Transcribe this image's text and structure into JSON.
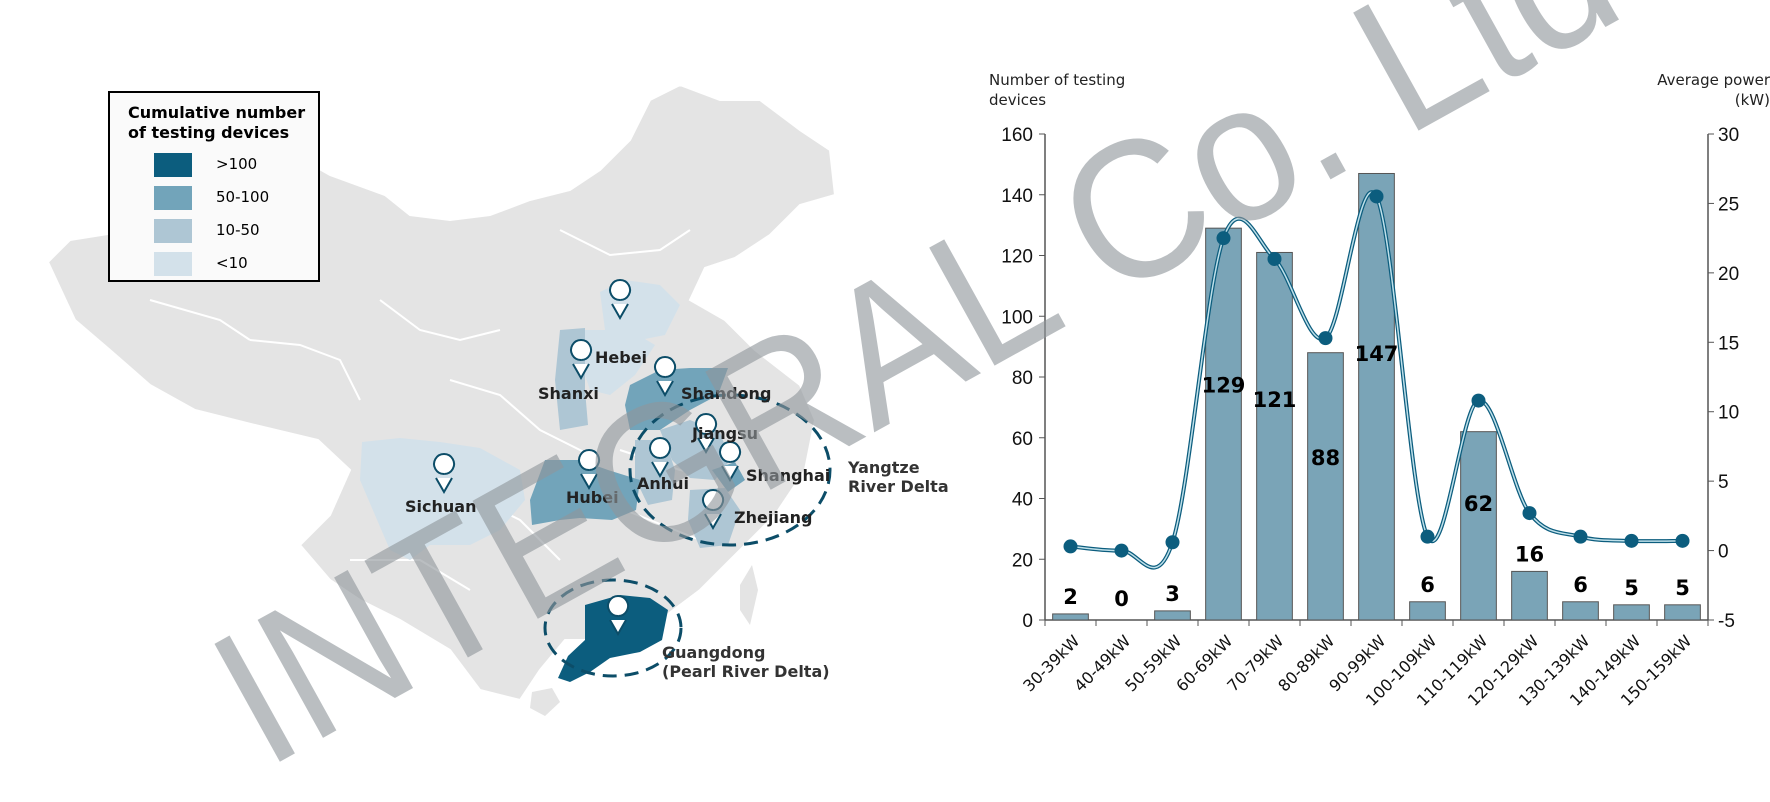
{
  "map": {
    "legend": {
      "title": "Cumulative number of testing devices",
      "items": [
        {
          "label": ">100",
          "color": "#0c5d7e"
        },
        {
          "label": "50-100",
          "color": "#72a4ba"
        },
        {
          "label": "10-50",
          "color": "#aec6d4"
        },
        {
          "label": "<10",
          "color": "#d3e1ea"
        }
      ]
    },
    "provinces": {
      "hebei": "Hebei",
      "shanxi": "Shanxi",
      "shandong": "Shandong",
      "jiangsu": "Jiangsu",
      "anhui": "Anhui",
      "shanghai": "Shanghai",
      "sichuan": "Sichuan",
      "hubei": "Hubei",
      "zhejiang": "Zhejiang",
      "guangdong": "Guangdong"
    },
    "regions": {
      "yangtze_line1": "Yangtze",
      "yangtze_line2": "River Delta",
      "pearl_line1": "Guangdong",
      "pearl_line2": "(Pearl River Delta)"
    },
    "colors": {
      "base": "#e4e4e4",
      "border": "#ffffff"
    }
  },
  "watermark": "INTEGRAL Co. Ltd",
  "chart_data": {
    "type": "bar",
    "categories": [
      "30-39kW",
      "40-49kW",
      "50-59kW",
      "60-69kW",
      "70-79kW",
      "80-89kW",
      "90-99kW",
      "100-109kW",
      "110-119kW",
      "120-129kW",
      "130-139kW",
      "140-149kW",
      "150-159kW"
    ],
    "series": [
      {
        "type": "bar",
        "axis": "left",
        "values": [
          2,
          0,
          3,
          129,
          121,
          88,
          147,
          6,
          62,
          16,
          6,
          5,
          5
        ],
        "color": "#7aa4b7"
      },
      {
        "type": "line",
        "axis": "right",
        "values": [
          0.3,
          0,
          0.6,
          22.5,
          21,
          15.3,
          25.5,
          1.0,
          10.8,
          2.7,
          1.0,
          0.7,
          0.7
        ],
        "color": "#0c5d7e"
      }
    ],
    "data_labels": [
      "2",
      "0",
      "3",
      "129",
      "121",
      "88",
      "147",
      "6",
      "62",
      "16",
      "6",
      "5",
      "5"
    ],
    "ylabel": "Number of testing devices",
    "y2label": "Average power (kW)",
    "ylim": [
      0,
      160
    ],
    "y2lim": [
      -5,
      30
    ],
    "yticks": [
      "0",
      "20",
      "40",
      "60",
      "80",
      "100",
      "120",
      "140",
      "160"
    ],
    "y2ticks": [
      "-5",
      "0",
      "5",
      "10",
      "15",
      "20",
      "25",
      "30"
    ],
    "grid": false
  }
}
